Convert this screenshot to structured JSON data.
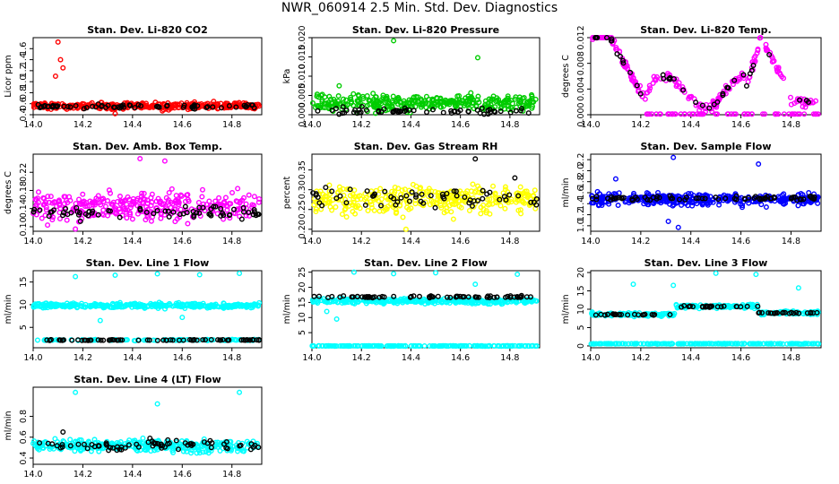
{
  "figure_title": "NWR_060914  2.5 Min. Std. Dev. Diagnostics",
  "colors": {
    "red": "#ff0000",
    "green": "#00cc00",
    "magenta": "#ff00ff",
    "yellow": "#ffff00",
    "blue": "#0000ff",
    "cyan": "#00ffff",
    "black": "#000000"
  },
  "chart_data": [
    {
      "type": "scatter",
      "title": "Stan. Dev. Li-820 CO2",
      "ylabel": "Licor ppm",
      "xlim": [
        14.0,
        14.92
      ],
      "ylim": [
        0.4,
        1.8
      ],
      "yticks": [
        "0.4",
        "0.6",
        "0.8",
        "1.0",
        "1.2",
        "1.4",
        "1.6"
      ],
      "xticks": [
        "14.0",
        "14.2",
        "14.4",
        "14.6",
        "14.8"
      ],
      "series": [
        {
          "color": "#ff0000",
          "pattern": "noise",
          "base": 0.56,
          "spread": 0.1,
          "n": 360,
          "outliers": [
            [
              14.1,
              1.72
            ],
            [
              14.11,
              1.4
            ],
            [
              14.12,
              1.25
            ],
            [
              14.09,
              1.1
            ],
            [
              14.33,
              0.42
            ],
            [
              14.52,
              0.47
            ]
          ]
        },
        {
          "color": "#000000",
          "pattern": "noise",
          "base": 0.55,
          "spread": 0.06,
          "n": 70
        }
      ]
    },
    {
      "type": "scatter",
      "title": "Stan. Dev. Li-820 Pressure",
      "ylabel": "kPa",
      "xlim": [
        14.0,
        14.92
      ],
      "ylim": [
        0.0,
        0.02
      ],
      "yticks": [
        "0.000",
        "0.005",
        "0.010",
        "0.015",
        "0.020"
      ],
      "xticks": [
        "14.0",
        "14.2",
        "14.4",
        "14.6",
        "14.8"
      ],
      "series": [
        {
          "color": "#00cc00",
          "pattern": "noise",
          "base": 0.003,
          "spread": 0.0035,
          "n": 340,
          "outliers": [
            [
              14.33,
              0.0192
            ],
            [
              14.67,
              0.0148
            ],
            [
              14.11,
              0.0075
            ]
          ]
        },
        {
          "color": "#000000",
          "pattern": "noise",
          "base": 0.001,
          "spread": 0.0015,
          "n": 60
        }
      ]
    },
    {
      "type": "scatter",
      "title": "Stan. Dev. Li-820 Temp.",
      "ylabel": "degrees C",
      "xlim": [
        14.0,
        14.92
      ],
      "ylim": [
        0.0,
        0.012
      ],
      "yticks": [
        "0.000",
        "0.004",
        "0.008",
        "0.012"
      ],
      "xticks": [
        "14.0",
        "14.2",
        "14.4",
        "14.6",
        "14.8"
      ],
      "series": [
        {
          "color": "#ff00ff",
          "pattern": "temp",
          "n": 280
        },
        {
          "color": "#000000",
          "pattern": "temp-black",
          "n": 40
        }
      ]
    },
    {
      "type": "scatter",
      "title": "Stan. Dev. Amb. Box Temp.",
      "ylabel": "degrees C",
      "xlim": [
        14.0,
        14.92
      ],
      "ylim": [
        0.09,
        0.26
      ],
      "yticks": [
        "0.10",
        "0.14",
        "0.18",
        "0.22"
      ],
      "xticks": [
        "14.0",
        "14.2",
        "14.4",
        "14.6",
        "14.8"
      ],
      "series": [
        {
          "color": "#ff00ff",
          "pattern": "noise",
          "base": 0.145,
          "spread": 0.05,
          "n": 320,
          "outliers": [
            [
              14.43,
              0.25
            ],
            [
              14.53,
              0.245
            ],
            [
              14.17,
              0.095
            ]
          ]
        },
        {
          "color": "#000000",
          "pattern": "noise",
          "base": 0.13,
          "spread": 0.025,
          "n": 70
        }
      ]
    },
    {
      "type": "scatter",
      "title": "Stan. Dev. Gas Stream RH",
      "ylabel": "percent",
      "xlim": [
        14.0,
        14.92
      ],
      "ylim": [
        0.195,
        0.39
      ],
      "yticks": [
        "0.20",
        "0.25",
        "0.30",
        "0.35"
      ],
      "xticks": [
        "14.0",
        "14.2",
        "14.4",
        "14.6",
        "14.8"
      ],
      "series": [
        {
          "color": "#ffff00",
          "pattern": "noise",
          "base": 0.275,
          "spread": 0.055,
          "n": 320,
          "outliers": [
            [
              14.38,
              0.2
            ]
          ]
        },
        {
          "color": "#000000",
          "pattern": "noise",
          "base": 0.28,
          "spread": 0.04,
          "n": 60,
          "outliers": [
            [
              14.66,
              0.378
            ],
            [
              14.82,
              0.33
            ]
          ]
        }
      ]
    },
    {
      "type": "scatter",
      "title": "Stan. Dev. Sample Flow",
      "ylabel": "ml/min",
      "xlim": [
        14.0,
        14.92
      ],
      "ylim": [
        0.9,
        2.3
      ],
      "yticks": [
        "1.0",
        "1.2",
        "1.4",
        "1.6",
        "1.8",
        "2.0",
        "2.2"
      ],
      "xticks": [
        "14.0",
        "14.2",
        "14.4",
        "14.6",
        "14.8"
      ],
      "series": [
        {
          "color": "#0000ff",
          "pattern": "noise",
          "base": 1.48,
          "spread": 0.18,
          "n": 360,
          "outliers": [
            [
              14.33,
              2.24
            ],
            [
              14.67,
              2.12
            ],
            [
              14.31,
              1.08
            ],
            [
              14.35,
              0.97
            ],
            [
              14.1,
              1.85
            ]
          ]
        },
        {
          "color": "#000000",
          "pattern": "noise",
          "base": 1.5,
          "spread": 0.06,
          "n": 70
        }
      ]
    },
    {
      "type": "scatter",
      "title": "Stan. Dev. Line 1 Flow",
      "ylabel": "ml/min",
      "xlim": [
        14.0,
        14.92
      ],
      "ylim": [
        0.5,
        17.5
      ],
      "yticks": [
        "5",
        "10",
        "15"
      ],
      "xticks": [
        "14.0",
        "14.2",
        "14.4",
        "14.6",
        "14.8"
      ],
      "series": [
        {
          "color": "#00ffff",
          "pattern": "noise",
          "base": 9.8,
          "spread": 0.9,
          "n": 340,
          "outliers": [
            [
              14.17,
              16.2
            ],
            [
              14.33,
              16.5
            ],
            [
              14.5,
              16.8
            ],
            [
              14.67,
              16.6
            ],
            [
              14.83,
              16.9
            ],
            [
              14.27,
              6.5
            ],
            [
              14.6,
              7.2
            ]
          ]
        },
        {
          "color": "#00ffff",
          "pattern": "noise",
          "base": 2.2,
          "spread": 0.2,
          "n": 120
        },
        {
          "color": "#000000",
          "pattern": "noise",
          "base": 2.2,
          "spread": 0.15,
          "n": 70
        }
      ]
    },
    {
      "type": "scatter",
      "title": "Stan. Dev. Line 2 Flow",
      "ylabel": "ml/min",
      "xlim": [
        14.0,
        14.92
      ],
      "ylim": [
        0.0,
        25.5
      ],
      "yticks": [
        "5",
        "10",
        "15",
        "20",
        "25"
      ],
      "xticks": [
        "14.0",
        "14.2",
        "14.4",
        "14.6",
        "14.8"
      ],
      "series": [
        {
          "color": "#00ffff",
          "pattern": "noise",
          "base": 15.5,
          "spread": 1.3,
          "n": 320,
          "outliers": [
            [
              14.17,
              25
            ],
            [
              14.33,
              24.5
            ],
            [
              14.5,
              24.8
            ],
            [
              14.83,
              24.3
            ],
            [
              14.66,
              21
            ],
            [
              14.1,
              9.5
            ],
            [
              14.06,
              12.0
            ]
          ]
        },
        {
          "color": "#00ffff",
          "pattern": "flat",
          "base": 0.6,
          "spread": 0.12,
          "n": 200
        },
        {
          "color": "#000000",
          "pattern": "noise",
          "base": 16.8,
          "spread": 0.6,
          "n": 70
        }
      ]
    },
    {
      "type": "scatter",
      "title": "Stan. Dev. Line 3 Flow",
      "ylabel": "ml/min",
      "xlim": [
        14.0,
        14.92
      ],
      "ylim": [
        -0.5,
        20.5
      ],
      "yticks": [
        "0",
        "5",
        "10",
        "15",
        "20"
      ],
      "xticks": [
        "14.0",
        "14.2",
        "14.4",
        "14.6",
        "14.8"
      ],
      "series": [
        {
          "color": "#00ffff",
          "pattern": "steps",
          "n": 320,
          "levels": [
            [
              14.0,
              14.34,
              8.6
            ],
            [
              14.34,
              14.67,
              10.8
            ],
            [
              14.67,
              14.92,
              9.0
            ]
          ],
          "spread": 0.8,
          "outliers": [
            [
              14.17,
              16.8
            ],
            [
              14.33,
              16.5
            ],
            [
              14.5,
              19.8
            ],
            [
              14.66,
              19.5
            ],
            [
              14.83,
              15.8
            ]
          ]
        },
        {
          "color": "#00ffff",
          "pattern": "flat",
          "base": 0.6,
          "spread": 0.12,
          "n": 200
        },
        {
          "color": "#000000",
          "pattern": "steps",
          "n": 70,
          "levels": [
            [
              14.0,
              14.34,
              8.5
            ],
            [
              14.34,
              14.67,
              10.7
            ],
            [
              14.67,
              14.92,
              9.0
            ]
          ],
          "spread": 0.3
        }
      ]
    },
    {
      "type": "scatter",
      "title": "Stan. Dev. Line 4 (LT) Flow",
      "ylabel": "ml/min",
      "xlim": [
        14.0,
        14.92
      ],
      "ylim": [
        0.34,
        1.08
      ],
      "yticks": [
        "0.4",
        "0.6",
        "0.8"
      ],
      "xticks": [
        "14.0",
        "14.2",
        "14.4",
        "14.6",
        "14.8"
      ],
      "series": [
        {
          "color": "#00ffff",
          "pattern": "noise",
          "base": 0.52,
          "spread": 0.09,
          "n": 340,
          "outliers": [
            [
              14.17,
              1.03
            ],
            [
              14.83,
              1.03
            ],
            [
              14.5,
              0.92
            ]
          ]
        },
        {
          "color": "#000000",
          "pattern": "noise",
          "base": 0.52,
          "spread": 0.07,
          "n": 70,
          "outliers": [
            [
              14.12,
              0.65
            ],
            [
              14.47,
              0.59
            ]
          ]
        }
      ]
    }
  ]
}
